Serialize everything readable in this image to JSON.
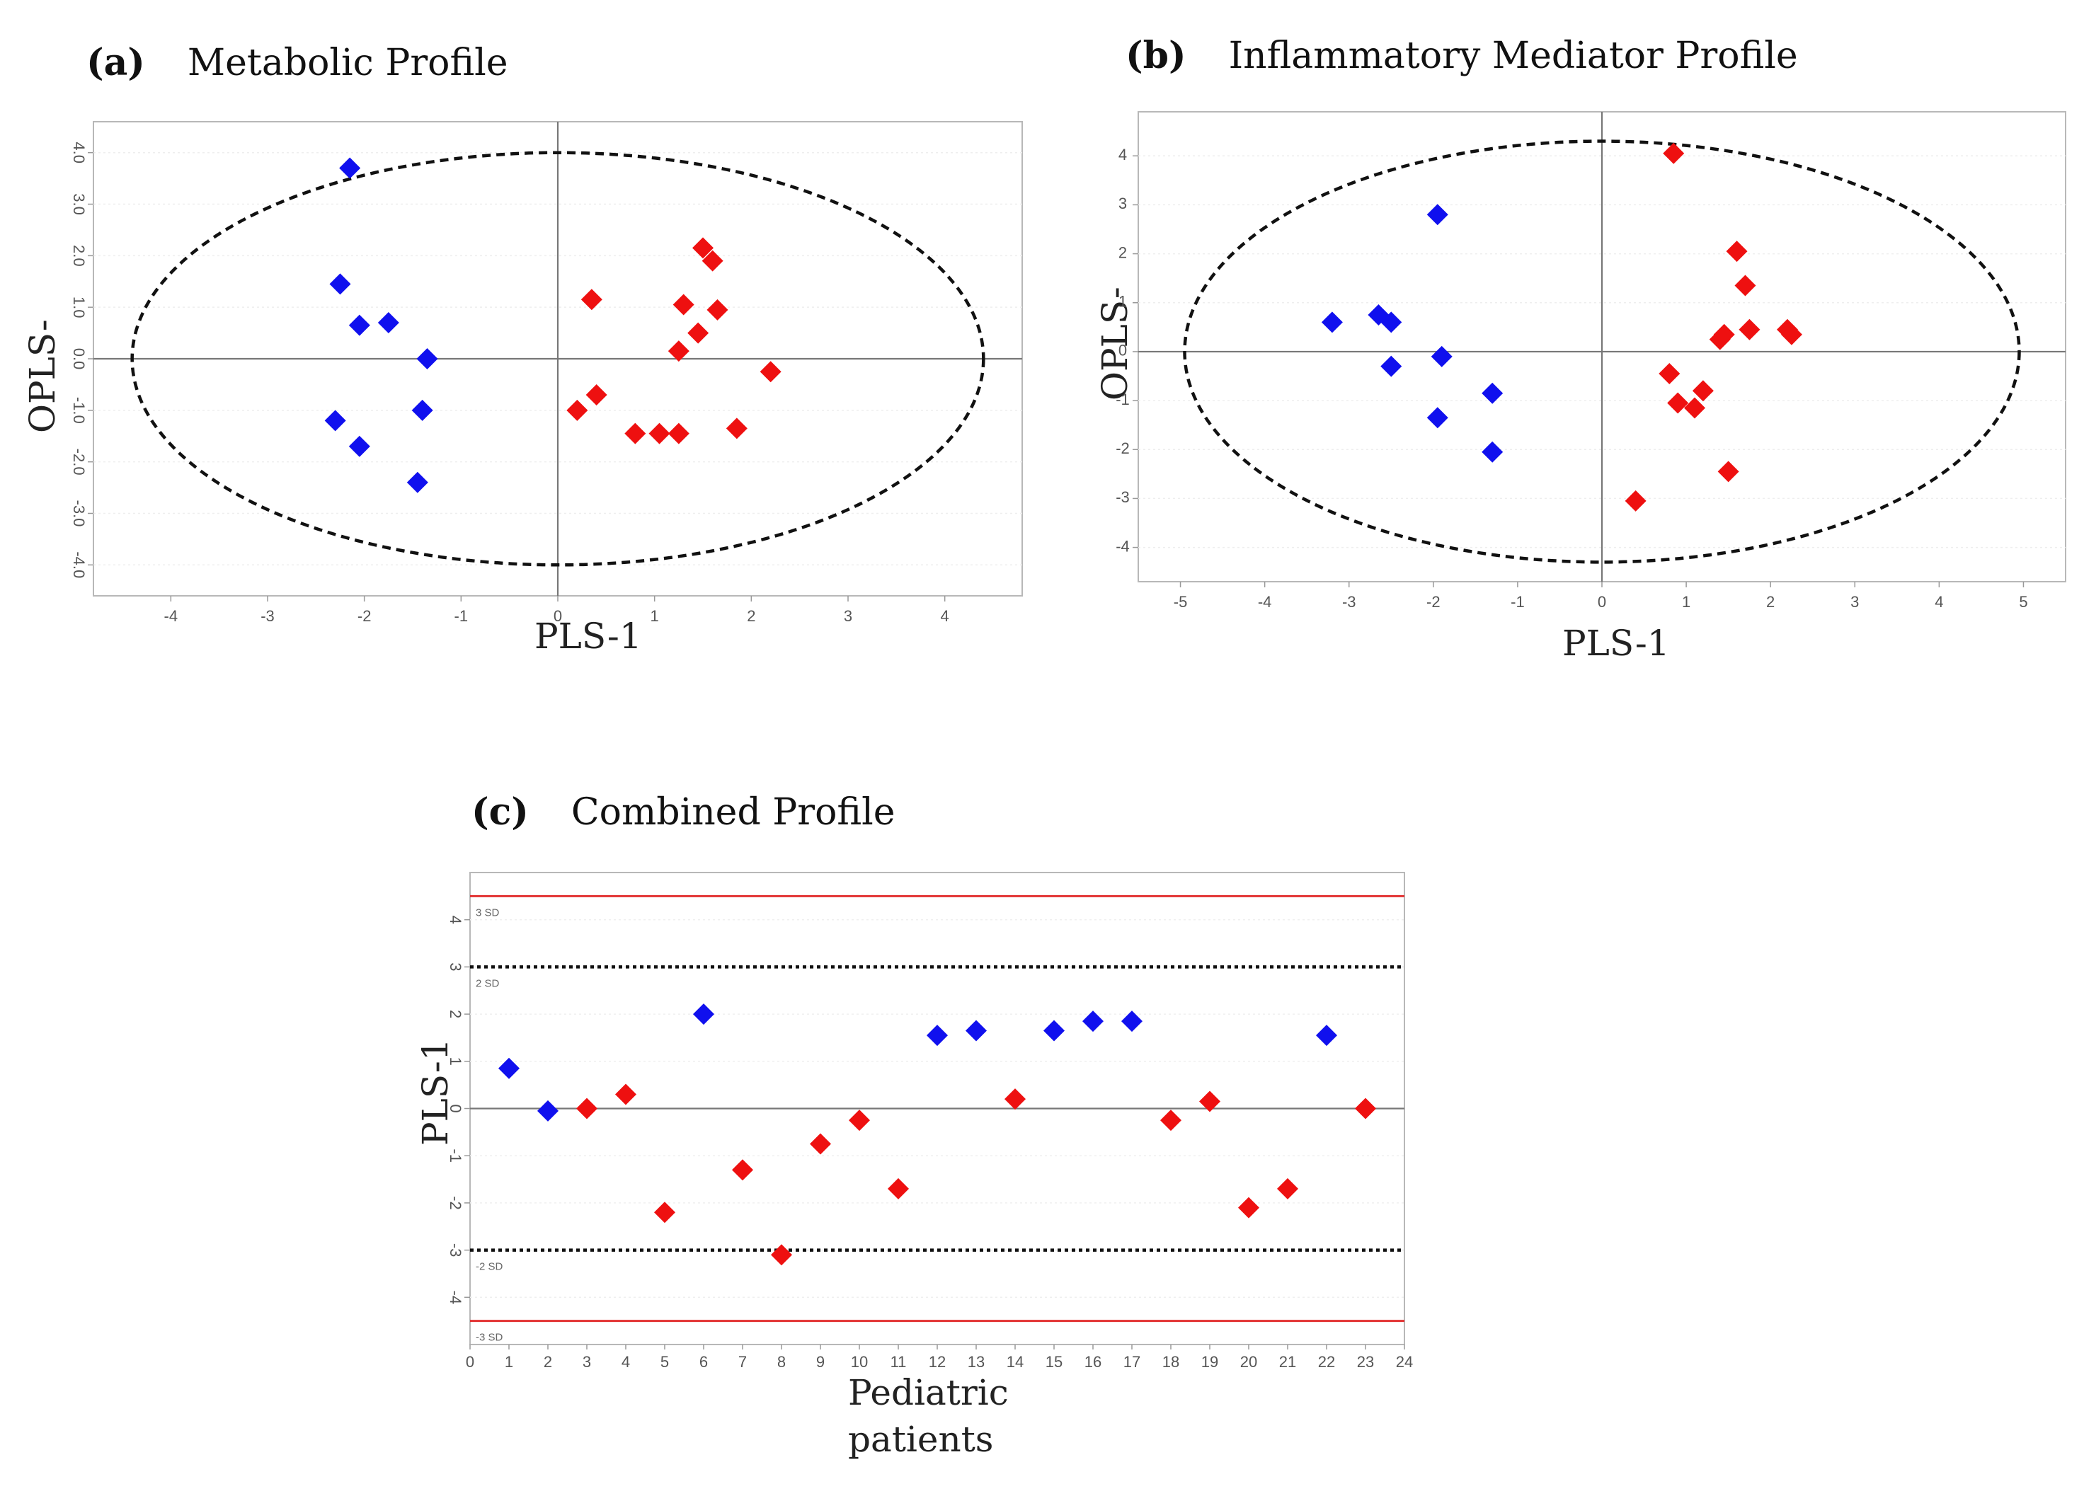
{
  "chart_data": [
    {
      "id": "a",
      "type": "scatter",
      "panel_label": "(a)",
      "title": "Metabolic Profile",
      "xlabel": "PLS-1",
      "ylabel": "OPLS-",
      "xlim": [
        -4.8,
        4.8
      ],
      "ylim": [
        -4.6,
        4.6
      ],
      "xticks": [
        "-4",
        "-3",
        "-2",
        "-1",
        "0",
        "1",
        "2",
        "3",
        "4"
      ],
      "yticks": [
        "4.0",
        "3.0",
        "2.0",
        "1.0",
        "0.0",
        "-1.0",
        "-2.0",
        "-3.0",
        "-4.0"
      ],
      "ellipse": {
        "rx": 4.4,
        "ry": 4.0
      },
      "colors": {
        "group1": "#1010ee",
        "group2": "#ee1010"
      },
      "series": [
        {
          "name": "group1",
          "x": [
            -2.15,
            -2.25,
            -2.05,
            -1.75,
            -1.35,
            -1.4,
            -2.3,
            -2.05,
            -1.45
          ],
          "y": [
            3.7,
            1.45,
            0.65,
            0.7,
            0.0,
            -1.0,
            -1.2,
            -1.7,
            -2.4
          ]
        },
        {
          "name": "group2",
          "x": [
            0.35,
            1.5,
            1.6,
            1.3,
            1.65,
            1.45,
            1.25,
            2.2,
            0.2,
            0.4,
            0.8,
            1.05,
            1.25,
            1.85
          ],
          "y": [
            1.15,
            2.15,
            1.9,
            1.05,
            0.95,
            0.5,
            0.15,
            -0.25,
            -1.0,
            -0.7,
            -1.45,
            -1.45,
            -1.45,
            -1.35
          ]
        }
      ]
    },
    {
      "id": "b",
      "type": "scatter",
      "panel_label": "(b)",
      "title": "Inflammatory Mediator Profile",
      "xlabel": "PLS-1",
      "ylabel": "OPLS-",
      "xlim": [
        -5.5,
        5.5
      ],
      "ylim": [
        -4.7,
        4.9
      ],
      "xticks": [
        "-5",
        "-4",
        "-3",
        "-2",
        "-1",
        "0",
        "1",
        "2",
        "3",
        "4",
        "5"
      ],
      "yticks": [
        "4",
        "3",
        "2",
        "1",
        "0",
        "-1",
        "-2",
        "-3",
        "-4"
      ],
      "ellipse": {
        "rx": 4.95,
        "ry": 4.3
      },
      "colors": {
        "group1": "#1010ee",
        "group2": "#ee1010"
      },
      "series": [
        {
          "name": "group1",
          "x": [
            -1.95,
            -3.2,
            -2.65,
            -2.5,
            -2.5,
            -1.9,
            -1.95,
            -1.3,
            -1.3
          ],
          "y": [
            2.8,
            0.6,
            0.75,
            0.6,
            -0.3,
            -0.1,
            -1.35,
            -0.85,
            -2.05
          ]
        },
        {
          "name": "group2",
          "x": [
            0.85,
            1.6,
            1.7,
            1.75,
            1.4,
            1.45,
            2.2,
            2.25,
            0.8,
            0.9,
            1.1,
            1.2,
            1.5,
            0.4
          ],
          "y": [
            4.05,
            2.05,
            1.35,
            0.45,
            0.25,
            0.35,
            0.45,
            0.35,
            -0.45,
            -1.05,
            -1.15,
            -0.8,
            -2.45,
            -3.05
          ]
        }
      ]
    },
    {
      "id": "c",
      "type": "scatter",
      "panel_label": "(c)",
      "title": "Combined Profile",
      "xlabel": "Pediatric patients",
      "ylabel": "PLS-1",
      "xlim": [
        0,
        24
      ],
      "ylim": [
        -5.0,
        5.0
      ],
      "xticks": [
        "0",
        "1",
        "2",
        "3",
        "4",
        "5",
        "6",
        "7",
        "8",
        "9",
        "10",
        "11",
        "12",
        "13",
        "14",
        "15",
        "16",
        "17",
        "18",
        "19",
        "20",
        "21",
        "22",
        "23",
        "24"
      ],
      "yticks": [
        "4",
        "3",
        "2",
        "1",
        "0",
        "-1",
        "-2",
        "-3",
        "-4"
      ],
      "sd_lines": {
        "sd3": 4.5,
        "sd2": 3.0
      },
      "sd_labels": [
        "3 SD",
        "2 SD",
        "-2 SD",
        "-3 SD"
      ],
      "colors": {
        "group1": "#1010ee",
        "group2": "#ee1010",
        "sd3": "#e23030",
        "sd2": "#111111"
      },
      "points": [
        {
          "x": 1,
          "y": 0.85,
          "g": "group1"
        },
        {
          "x": 2,
          "y": -0.05,
          "g": "group1"
        },
        {
          "x": 3,
          "y": 0.0,
          "g": "group2"
        },
        {
          "x": 4,
          "y": 0.3,
          "g": "group2"
        },
        {
          "x": 5,
          "y": -2.2,
          "g": "group2"
        },
        {
          "x": 6,
          "y": 2.0,
          "g": "group1"
        },
        {
          "x": 7,
          "y": -1.3,
          "g": "group2"
        },
        {
          "x": 8,
          "y": -3.1,
          "g": "group2"
        },
        {
          "x": 9,
          "y": -0.75,
          "g": "group2"
        },
        {
          "x": 10,
          "y": -0.25,
          "g": "group2"
        },
        {
          "x": 11,
          "y": -1.7,
          "g": "group2"
        },
        {
          "x": 12,
          "y": 1.55,
          "g": "group1"
        },
        {
          "x": 13,
          "y": 1.65,
          "g": "group1"
        },
        {
          "x": 14,
          "y": 0.2,
          "g": "group2"
        },
        {
          "x": 15,
          "y": 1.65,
          "g": "group1"
        },
        {
          "x": 16,
          "y": 1.85,
          "g": "group1"
        },
        {
          "x": 17,
          "y": 1.85,
          "g": "group1"
        },
        {
          "x": 18,
          "y": -0.25,
          "g": "group2"
        },
        {
          "x": 19,
          "y": 0.15,
          "g": "group2"
        },
        {
          "x": 20,
          "y": -2.1,
          "g": "group2"
        },
        {
          "x": 21,
          "y": -1.7,
          "g": "group2"
        },
        {
          "x": 22,
          "y": 1.55,
          "g": "group1"
        },
        {
          "x": 23,
          "y": 0.0,
          "g": "group2"
        }
      ]
    }
  ]
}
